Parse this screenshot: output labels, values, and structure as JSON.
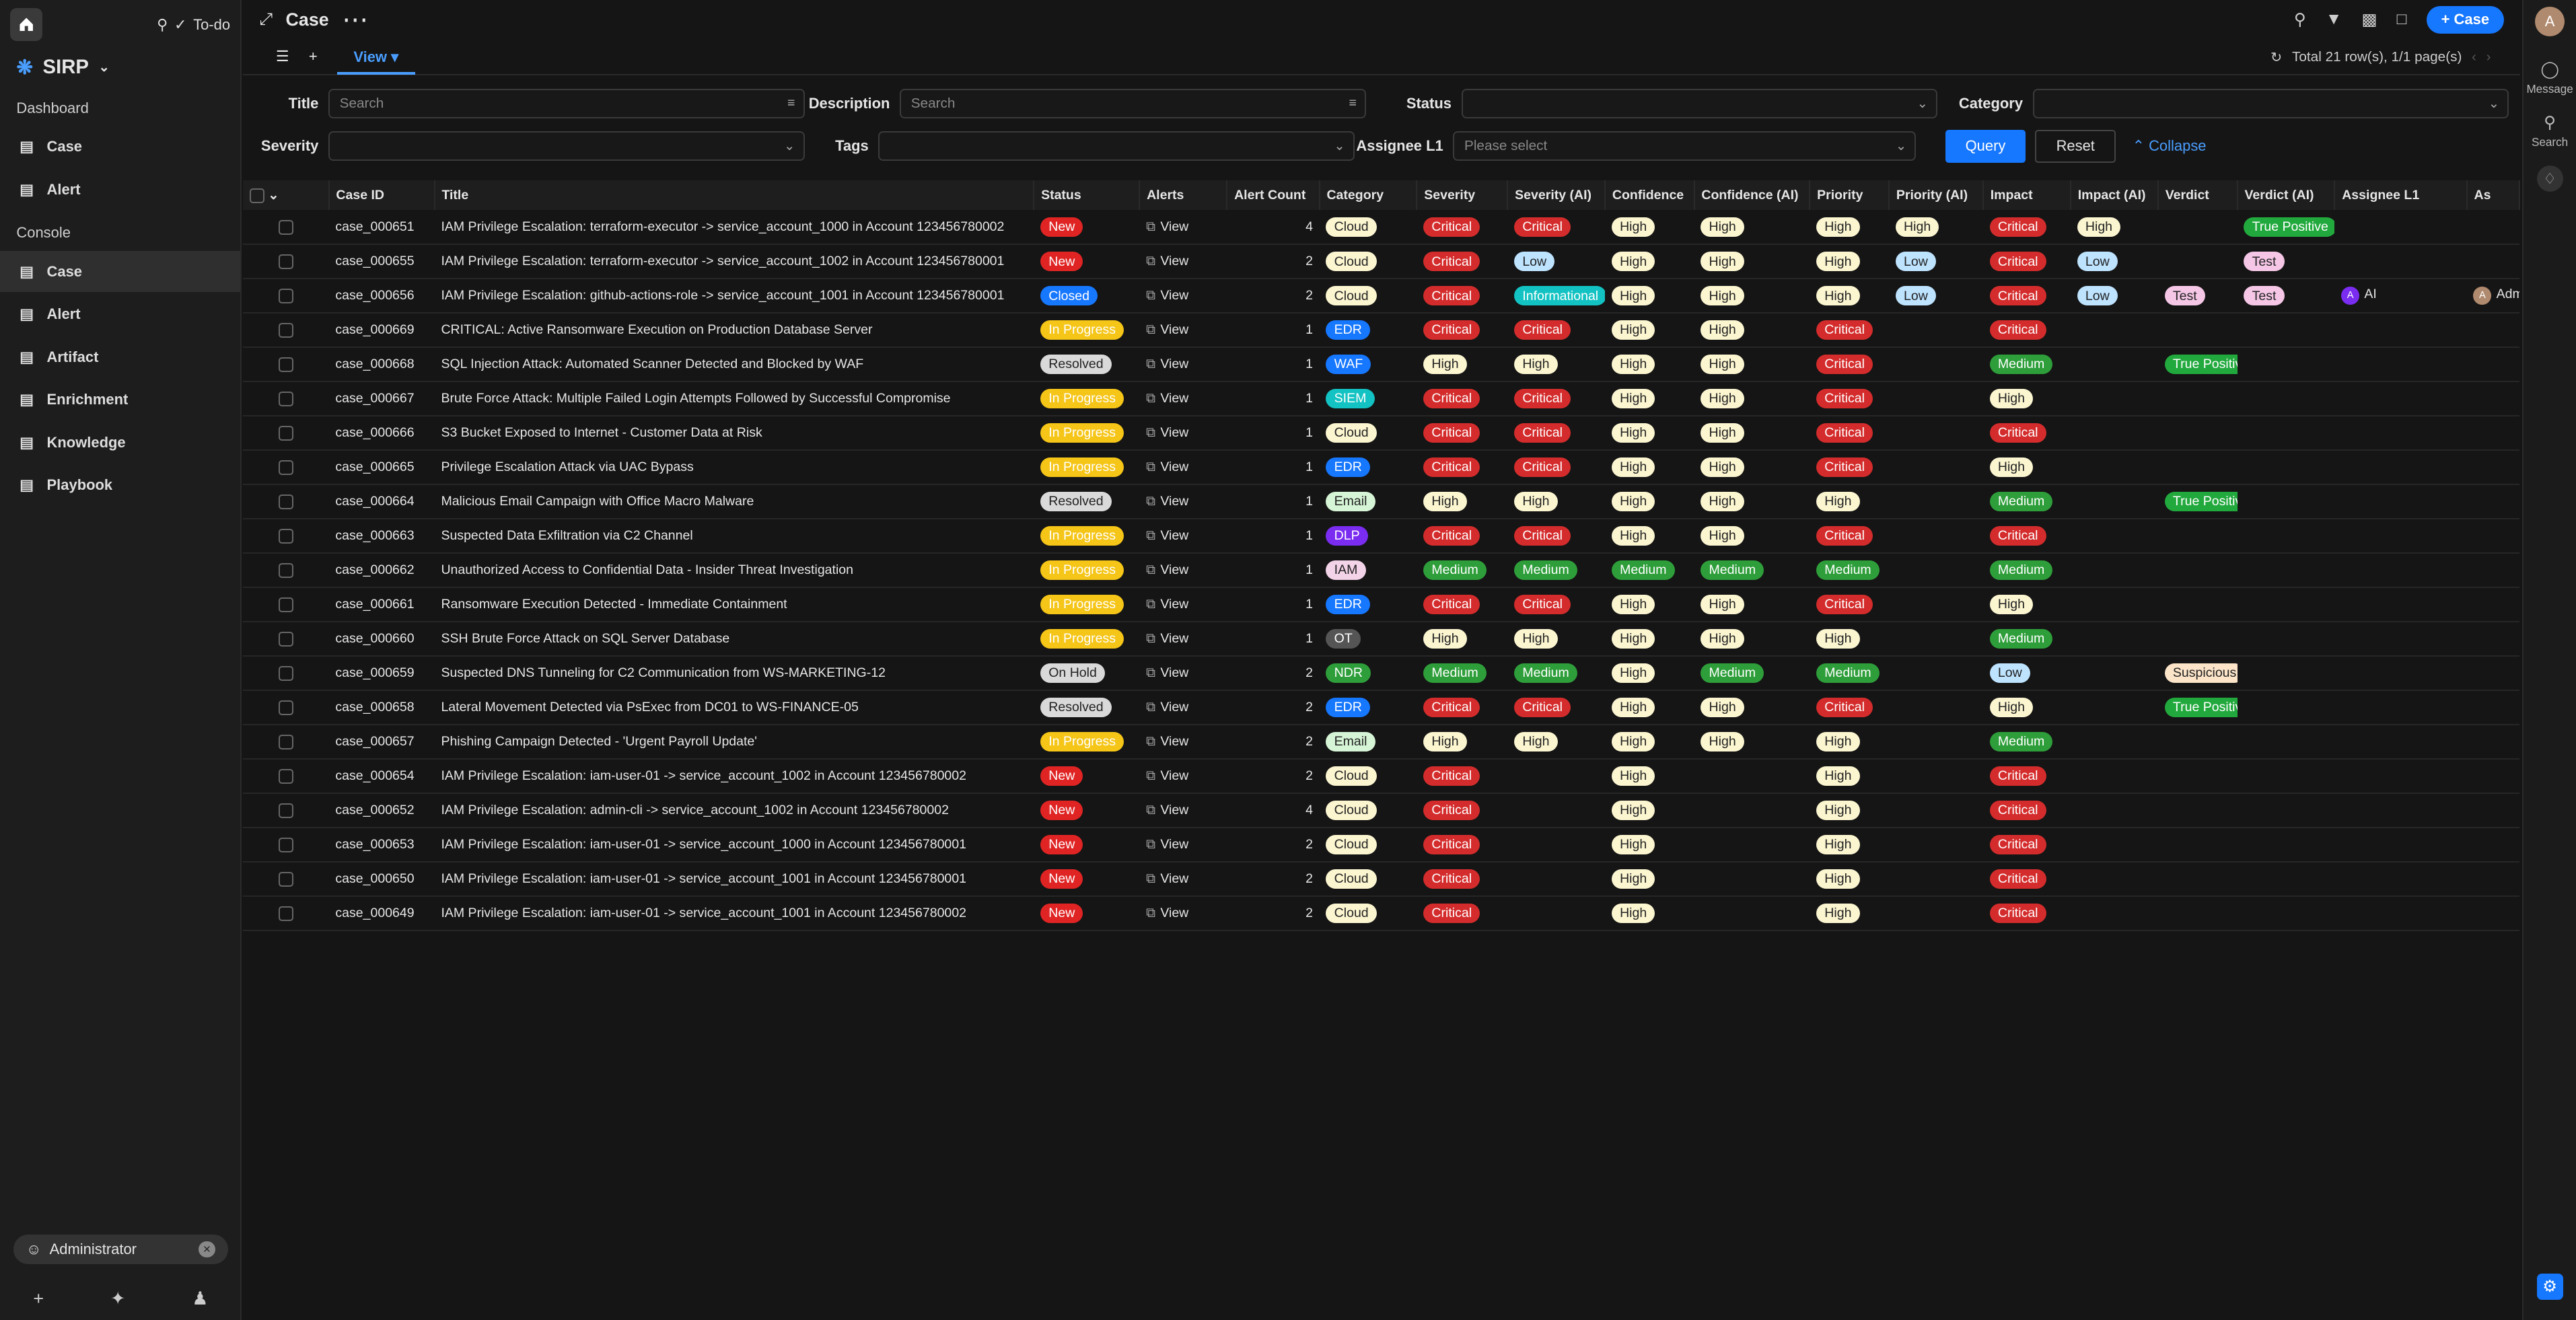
{
  "sidebar": {
    "todo_label": "To-do",
    "brand": "SIRP",
    "sections": [
      {
        "title": "Dashboard",
        "items": [
          {
            "label": "Case",
            "icon": "chart-icon"
          },
          {
            "label": "Alert",
            "icon": "chart-icon"
          }
        ]
      },
      {
        "title": "Console",
        "items": [
          {
            "label": "Case",
            "icon": "folder-icon",
            "active": true
          },
          {
            "label": "Alert",
            "icon": "bell-icon"
          },
          {
            "label": "Artifact",
            "icon": "cube-icon"
          },
          {
            "label": "Enrichment",
            "icon": "book-icon"
          },
          {
            "label": "Knowledge",
            "icon": "cap-icon"
          },
          {
            "label": "Playbook",
            "icon": "flow-icon"
          }
        ]
      }
    ],
    "user": "Administrator"
  },
  "header": {
    "title": "Case",
    "new_case_label": "+ Case"
  },
  "tabs": {
    "view_label": "View",
    "total": "Total 21 row(s), 1/1 page(s)"
  },
  "filters": {
    "title_label": "Title",
    "title_placeholder": "Search",
    "description_label": "Description",
    "description_placeholder": "Search",
    "status_label": "Status",
    "category_label": "Category",
    "severity_label": "Severity",
    "tags_label": "Tags",
    "assignee_label": "Assignee L1",
    "assignee_placeholder": "Please select",
    "query_label": "Query",
    "reset_label": "Reset",
    "collapse_label": "Collapse"
  },
  "columns": [
    "Case ID",
    "Title",
    "Status",
    "Alerts",
    "Alert Count",
    "Category",
    "Severity",
    "Severity (AI)",
    "Confidence",
    "Confidence (AI)",
    "Priority",
    "Priority (AI)",
    "Impact",
    "Impact (AI)",
    "Verdict",
    "Verdict (AI)",
    "Assignee L1",
    "As"
  ],
  "view_label": "View",
  "rows": [
    [
      "case_000651",
      "IAM Privilege Escalation: terraform-executor -> service_account_1000 in Account 123456780002",
      "New",
      "4",
      "Cloud",
      "Critical",
      "Critical",
      "High",
      "High",
      "High",
      "High",
      "Critical",
      "High",
      "",
      "True Positive",
      "",
      ""
    ],
    [
      "case_000655",
      "IAM Privilege Escalation: terraform-executor -> service_account_1002 in Account 123456780001",
      "New",
      "2",
      "Cloud",
      "Critical",
      "Low",
      "High",
      "High",
      "High",
      "Low",
      "Critical",
      "Low",
      "",
      "Test",
      "",
      ""
    ],
    [
      "case_000656",
      "IAM Privilege Escalation: github-actions-role -> service_account_1001 in Account 123456780001",
      "Closed",
      "2",
      "Cloud",
      "Critical",
      "Informational",
      "High",
      "High",
      "High",
      "Low",
      "Critical",
      "Low",
      "Test",
      "Test",
      "AI",
      "Adm"
    ],
    [
      "case_000669",
      "CRITICAL: Active Ransomware Execution on Production Database Server",
      "In Progress",
      "1",
      "EDR",
      "Critical",
      "Critical",
      "High",
      "High",
      "Critical",
      "",
      "Critical",
      "",
      "",
      "",
      "",
      ""
    ],
    [
      "case_000668",
      "SQL Injection Attack: Automated Scanner Detected and Blocked by WAF",
      "Resolved",
      "1",
      "WAF",
      "High",
      "High",
      "High",
      "High",
      "Critical",
      "",
      "Medium",
      "",
      "True Positive",
      "",
      "",
      ""
    ],
    [
      "case_000667",
      "Brute Force Attack: Multiple Failed Login Attempts Followed by Successful Compromise",
      "In Progress",
      "1",
      "SIEM",
      "Critical",
      "Critical",
      "High",
      "High",
      "Critical",
      "",
      "High",
      "",
      "",
      "",
      "",
      ""
    ],
    [
      "case_000666",
      "S3 Bucket Exposed to Internet - Customer Data at Risk",
      "In Progress",
      "1",
      "Cloud",
      "Critical",
      "Critical",
      "High",
      "High",
      "Critical",
      "",
      "Critical",
      "",
      "",
      "",
      "",
      ""
    ],
    [
      "case_000665",
      "Privilege Escalation Attack via UAC Bypass",
      "In Progress",
      "1",
      "EDR",
      "Critical",
      "Critical",
      "High",
      "High",
      "Critical",
      "",
      "High",
      "",
      "",
      "",
      "",
      ""
    ],
    [
      "case_000664",
      "Malicious Email Campaign with Office Macro Malware",
      "Resolved",
      "1",
      "Email",
      "High",
      "High",
      "High",
      "High",
      "High",
      "",
      "Medium",
      "",
      "True Positive",
      "",
      "",
      ""
    ],
    [
      "case_000663",
      "Suspected Data Exfiltration via C2 Channel",
      "In Progress",
      "1",
      "DLP",
      "Critical",
      "Critical",
      "High",
      "High",
      "Critical",
      "",
      "Critical",
      "",
      "",
      "",
      "",
      ""
    ],
    [
      "case_000662",
      "Unauthorized Access to Confidential Data - Insider Threat Investigation",
      "In Progress",
      "1",
      "IAM",
      "Medium",
      "Medium",
      "Medium",
      "Medium",
      "Medium",
      "",
      "Medium",
      "",
      "",
      "",
      "",
      ""
    ],
    [
      "case_000661",
      "Ransomware Execution Detected - Immediate Containment",
      "In Progress",
      "1",
      "EDR",
      "Critical",
      "Critical",
      "High",
      "High",
      "Critical",
      "",
      "High",
      "",
      "",
      "",
      "",
      ""
    ],
    [
      "case_000660",
      "SSH Brute Force Attack on SQL Server Database",
      "In Progress",
      "1",
      "OT",
      "High",
      "High",
      "High",
      "High",
      "High",
      "",
      "Medium",
      "",
      "",
      "",
      "",
      ""
    ],
    [
      "case_000659",
      "Suspected DNS Tunneling for C2 Communication from WS-MARKETING-12",
      "On Hold",
      "2",
      "NDR",
      "Medium",
      "Medium",
      "High",
      "Medium",
      "Medium",
      "",
      "Low",
      "",
      "Suspicious",
      "",
      "",
      ""
    ],
    [
      "case_000658",
      "Lateral Movement Detected via PsExec from DC01 to WS-FINANCE-05",
      "Resolved",
      "2",
      "EDR",
      "Critical",
      "Critical",
      "High",
      "High",
      "Critical",
      "",
      "High",
      "",
      "True Positive",
      "",
      "",
      ""
    ],
    [
      "case_000657",
      "Phishing Campaign Detected - 'Urgent Payroll Update'",
      "In Progress",
      "2",
      "Email",
      "High",
      "High",
      "High",
      "High",
      "High",
      "",
      "Medium",
      "",
      "",
      "",
      "",
      ""
    ],
    [
      "case_000654",
      "IAM Privilege Escalation: iam-user-01 -> service_account_1002 in Account 123456780002",
      "New",
      "2",
      "Cloud",
      "Critical",
      "",
      "High",
      "",
      "High",
      "",
      "Critical",
      "",
      "",
      "",
      "",
      ""
    ],
    [
      "case_000652",
      "IAM Privilege Escalation: admin-cli -> service_account_1002 in Account 123456780002",
      "New",
      "4",
      "Cloud",
      "Critical",
      "",
      "High",
      "",
      "High",
      "",
      "Critical",
      "",
      "",
      "",
      "",
      ""
    ],
    [
      "case_000653",
      "IAM Privilege Escalation: iam-user-01 -> service_account_1000 in Account 123456780001",
      "New",
      "2",
      "Cloud",
      "Critical",
      "",
      "High",
      "",
      "High",
      "",
      "Critical",
      "",
      "",
      "",
      "",
      ""
    ],
    [
      "case_000650",
      "IAM Privilege Escalation: iam-user-01 -> service_account_1001 in Account 123456780001",
      "New",
      "2",
      "Cloud",
      "Critical",
      "",
      "High",
      "",
      "High",
      "",
      "Critical",
      "",
      "",
      "",
      "",
      ""
    ],
    [
      "case_000649",
      "IAM Privilege Escalation: iam-user-01 -> service_account_1001 in Account 123456780002",
      "New",
      "2",
      "Cloud",
      "Critical",
      "",
      "High",
      "",
      "High",
      "",
      "Critical",
      "",
      "",
      "",
      "",
      ""
    ]
  ],
  "right_rail": {
    "avatar": "A",
    "message_label": "Message",
    "search_label": "Search"
  },
  "colors": {
    "accent": "#1677ff",
    "new": "#e02424",
    "critical": "#d42c2c",
    "high": "#f3f3d9",
    "in_progress": "#f5c518",
    "medium": "#2e9e3a",
    "low": "#bde3ff",
    "resolved": "#d9d9d9",
    "closed": "#1677ff"
  }
}
